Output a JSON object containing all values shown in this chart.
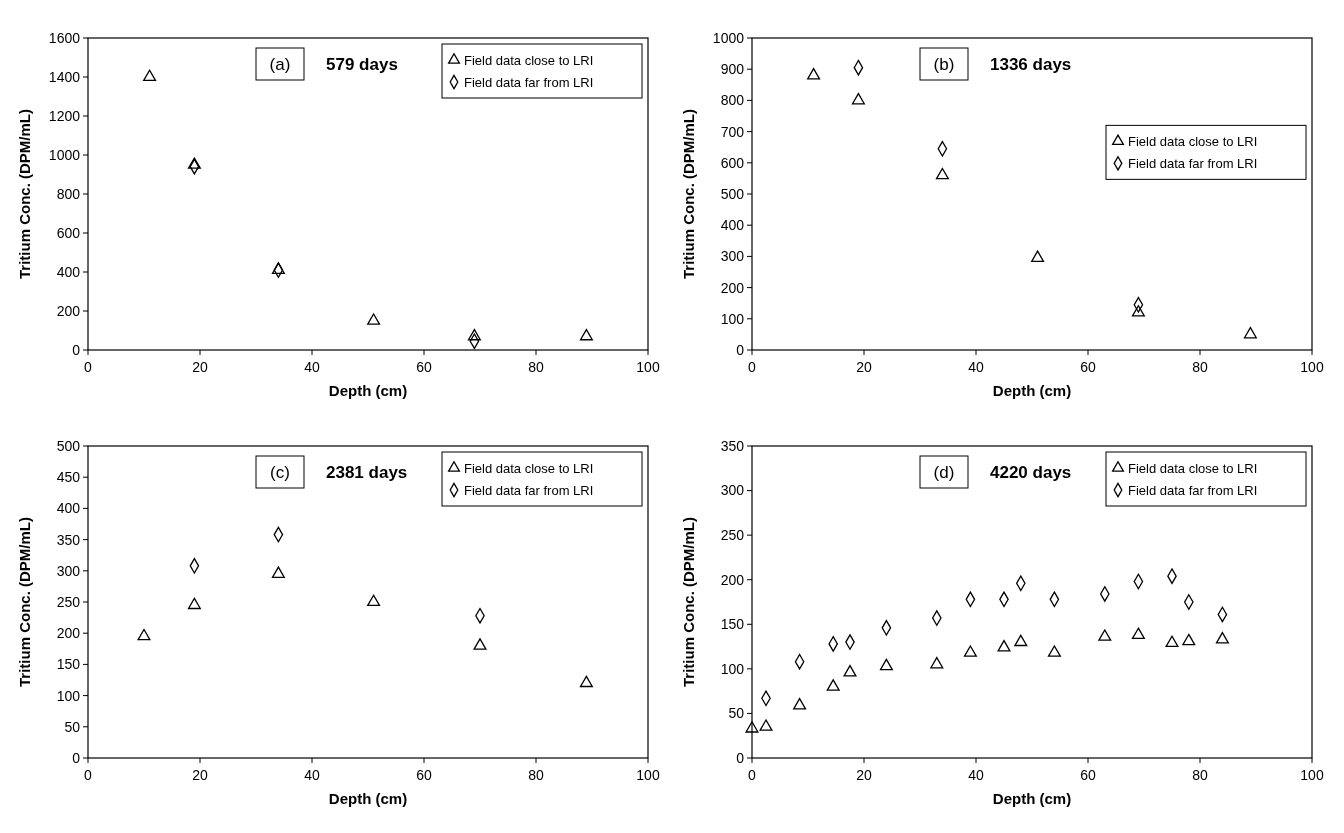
{
  "chart_data": [
    {
      "type": "scatter",
      "title": "579 days",
      "annotations": [
        "(a)"
      ],
      "xlabel": "Depth (cm)",
      "ylabel": "Tritium Conc. (DPM/mL)",
      "xlim": [
        0,
        100
      ],
      "xticks": [
        0,
        20,
        40,
        60,
        80,
        100
      ],
      "ylim": [
        0,
        1600
      ],
      "yticks": [
        0,
        200,
        400,
        600,
        800,
        1000,
        1200,
        1400,
        1600
      ],
      "grid": false,
      "legend": "top right",
      "series": [
        {
          "name": "Field data close to LRI",
          "color": "#000000",
          "marker": "triangle",
          "x": [
            11,
            19,
            34,
            51,
            69,
            89
          ],
          "values": [
            1400,
            950,
            410,
            150,
            70,
            70
          ]
        },
        {
          "name": "Field data far from LRI",
          "color": "#000000",
          "marker": "diamond",
          "x": [
            19,
            34,
            69
          ],
          "values": [
            940,
            410,
            45
          ]
        }
      ]
    },
    {
      "type": "scatter",
      "title": "1336 days",
      "annotations": [
        "(b)"
      ],
      "xlabel": "Depth (cm)",
      "ylabel": "Tritium Conc. (DPM/mL)",
      "xlim": [
        0,
        100
      ],
      "xticks": [
        0,
        20,
        40,
        60,
        80,
        100
      ],
      "ylim": [
        0,
        1000
      ],
      "yticks": [
        0,
        100,
        200,
        300,
        400,
        500,
        600,
        700,
        800,
        900,
        1000
      ],
      "grid": false,
      "legend": "right",
      "series": [
        {
          "name": "Field data close to LRI",
          "color": "#000000",
          "marker": "triangle",
          "x": [
            11,
            19,
            34,
            51,
            69,
            89
          ],
          "values": [
            880,
            800,
            560,
            295,
            120,
            50
          ]
        },
        {
          "name": "Field data far from LRI",
          "color": "#000000",
          "marker": "diamond",
          "x": [
            19,
            34,
            69
          ],
          "values": [
            905,
            645,
            145
          ]
        }
      ]
    },
    {
      "type": "scatter",
      "title": "2381 days",
      "annotations": [
        "(c)"
      ],
      "xlabel": "Depth (cm)",
      "ylabel": "Tritium Conc. (DPM/mL)",
      "xlim": [
        0,
        100
      ],
      "xticks": [
        0,
        20,
        40,
        60,
        80,
        100
      ],
      "ylim": [
        0,
        500
      ],
      "yticks": [
        0,
        50,
        100,
        150,
        200,
        250,
        300,
        350,
        400,
        450,
        500
      ],
      "grid": false,
      "legend": "top right",
      "series": [
        {
          "name": "Field data close to LRI",
          "color": "#000000",
          "marker": "triangle",
          "x": [
            10,
            19,
            34,
            51,
            70,
            89
          ],
          "values": [
            195,
            245,
            295,
            250,
            180,
            120
          ]
        },
        {
          "name": "Field data far from LRI",
          "color": "#000000",
          "marker": "diamond",
          "x": [
            19,
            34,
            70
          ],
          "values": [
            308,
            358,
            228
          ]
        }
      ]
    },
    {
      "type": "scatter",
      "title": "4220 days",
      "annotations": [
        "(d)"
      ],
      "xlabel": "Depth (cm)",
      "ylabel": "Tritium Conc. (DPM/mL)",
      "xlim": [
        0,
        100
      ],
      "xticks": [
        0,
        20,
        40,
        60,
        80,
        100
      ],
      "ylim": [
        0,
        350
      ],
      "yticks": [
        0,
        50,
        100,
        150,
        200,
        250,
        300,
        350
      ],
      "grid": false,
      "legend": "top right",
      "series": [
        {
          "name": "Field data close to LRI",
          "color": "#000000",
          "marker": "triangle",
          "x": [
            0,
            2.5,
            8.5,
            14.5,
            17.5,
            24,
            33,
            39,
            45,
            48,
            54,
            63,
            69,
            75,
            78,
            84
          ],
          "values": [
            33,
            35,
            59,
            80,
            96,
            103,
            105,
            118,
            124,
            130,
            118,
            136,
            138,
            129,
            131,
            133
          ]
        },
        {
          "name": "Field data far from LRI",
          "color": "#000000",
          "marker": "diamond",
          "x": [
            2.5,
            8.5,
            14.5,
            17.5,
            24,
            33,
            39,
            45,
            48,
            54,
            63,
            69,
            75,
            78,
            84
          ],
          "values": [
            67,
            108,
            128,
            130,
            146,
            157,
            178,
            178,
            196,
            178,
            184,
            198,
            204,
            175,
            161
          ]
        }
      ]
    }
  ]
}
